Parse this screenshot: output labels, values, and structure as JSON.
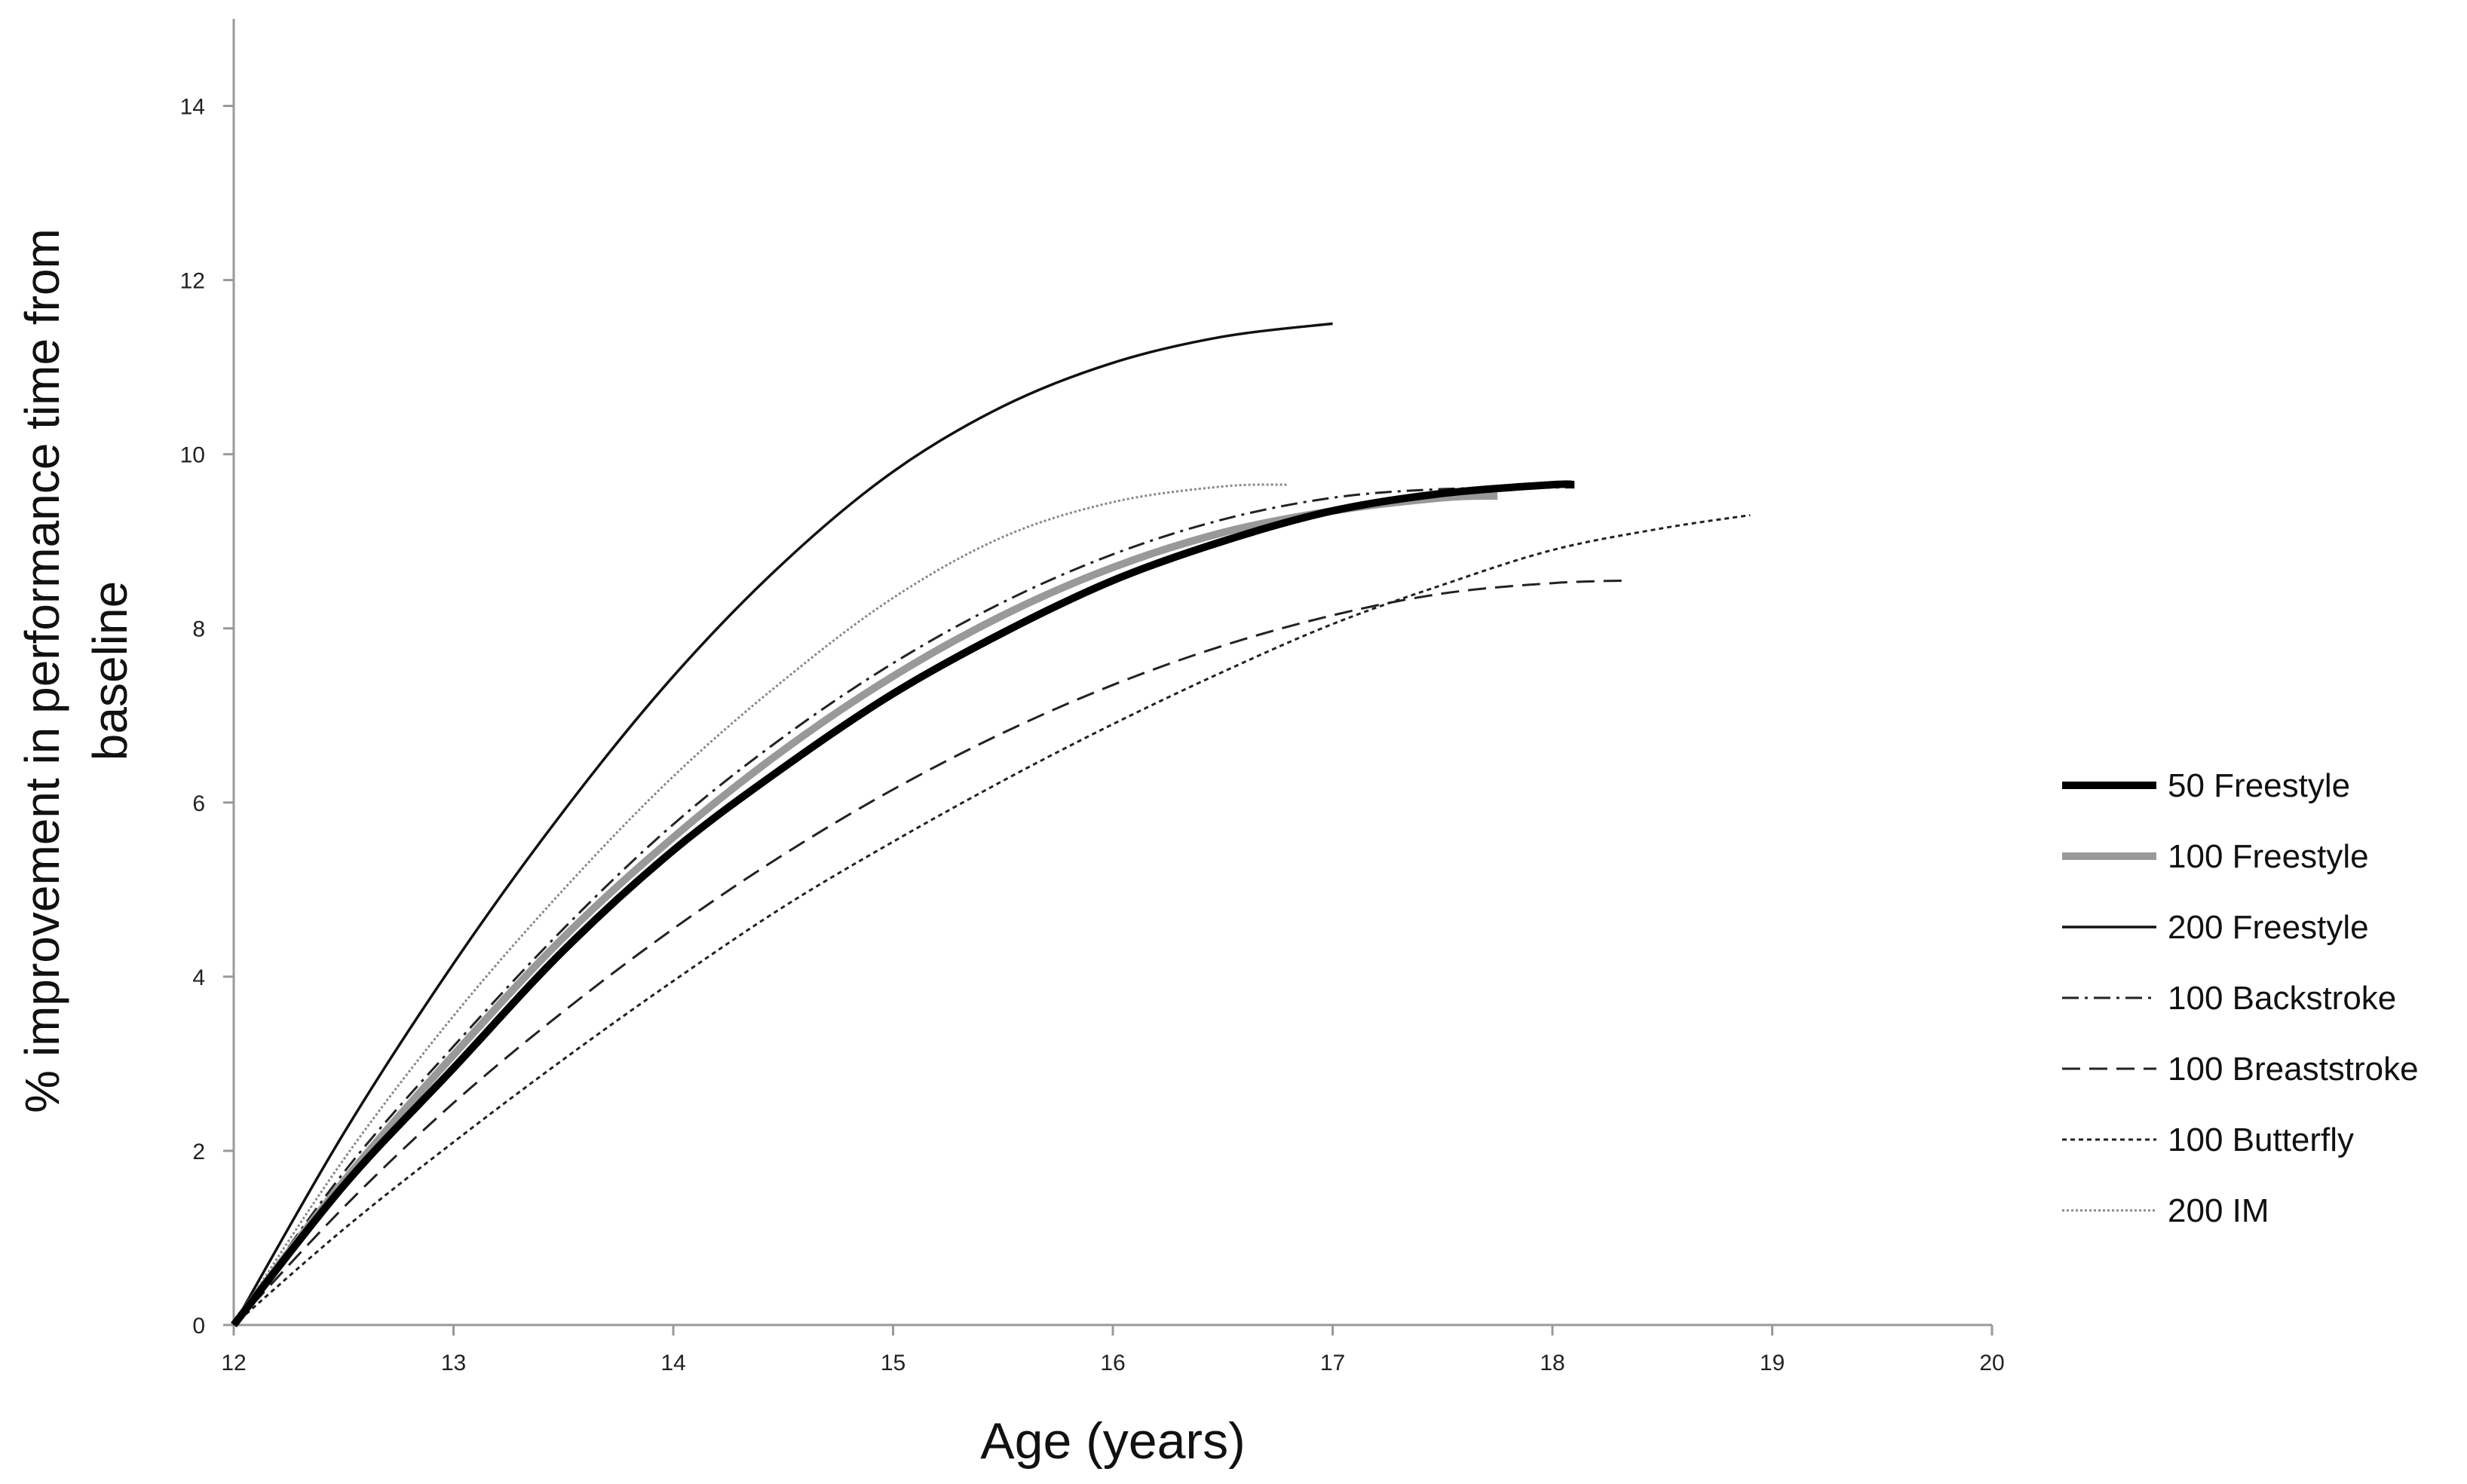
{
  "chart_data": {
    "type": "line",
    "title": "",
    "xlabel": "Age (years)",
    "ylabel_line1": "% improvement in performance time from",
    "ylabel_line2": "baseline",
    "xlim": [
      12,
      20
    ],
    "ylim": [
      0,
      15
    ],
    "x_ticks": [
      "12",
      "13",
      "14",
      "15",
      "16",
      "17",
      "18",
      "19",
      "20"
    ],
    "y_ticks": [
      "0",
      "2",
      "4",
      "6",
      "8",
      "10",
      "12",
      "14"
    ],
    "grid": false,
    "legend_position": "right",
    "series": [
      {
        "name": "50 Freestyle",
        "style": "solid-thick",
        "color": "#000000",
        "x": [
          12,
          12.5,
          13,
          13.5,
          14,
          14.5,
          15,
          15.5,
          16,
          16.5,
          17,
          17.5,
          18,
          18.1
        ],
        "y": [
          0,
          1.6,
          2.95,
          4.3,
          5.45,
          6.4,
          7.25,
          7.95,
          8.55,
          9.0,
          9.35,
          9.55,
          9.65,
          9.65
        ]
      },
      {
        "name": "100 Freestyle",
        "style": "solid-thick",
        "color": "#999999",
        "x": [
          12,
          12.5,
          13,
          13.5,
          14,
          14.5,
          15,
          15.5,
          16,
          16.5,
          17,
          17.5,
          17.75
        ],
        "y": [
          0,
          1.65,
          3.1,
          4.45,
          5.6,
          6.6,
          7.45,
          8.15,
          8.7,
          9.1,
          9.35,
          9.5,
          9.52
        ]
      },
      {
        "name": "200 Freestyle",
        "style": "solid-thin",
        "color": "#111111",
        "x": [
          12,
          12.5,
          13,
          13.5,
          14,
          14.5,
          15,
          15.5,
          16,
          16.5,
          17
        ],
        "y": [
          0,
          2.2,
          4.15,
          5.9,
          7.45,
          8.75,
          9.8,
          10.55,
          11.05,
          11.35,
          11.5
        ]
      },
      {
        "name": "100 Backstroke",
        "style": "dash-dot",
        "color": "#222222",
        "x": [
          12,
          12.5,
          13,
          13.5,
          14,
          14.5,
          15,
          15.5,
          16,
          16.5,
          17,
          17.5,
          18.1
        ],
        "y": [
          0,
          1.75,
          3.2,
          4.55,
          5.75,
          6.75,
          7.6,
          8.3,
          8.85,
          9.25,
          9.5,
          9.6,
          9.62
        ]
      },
      {
        "name": "100 Breaststroke",
        "style": "dashed",
        "color": "#222222",
        "x": [
          12,
          12.5,
          13,
          13.5,
          14,
          14.5,
          15,
          15.5,
          16,
          16.5,
          17,
          17.5,
          18,
          18.35
        ],
        "y": [
          0,
          1.35,
          2.55,
          3.6,
          4.55,
          5.4,
          6.15,
          6.8,
          7.35,
          7.8,
          8.15,
          8.4,
          8.52,
          8.55
        ]
      },
      {
        "name": "100 Butterfly",
        "style": "dotted",
        "color": "#222222",
        "x": [
          12,
          12.5,
          13,
          13.5,
          14,
          14.5,
          15,
          15.5,
          16,
          16.5,
          17,
          17.5,
          18,
          18.5,
          18.9
        ],
        "y": [
          0,
          1.1,
          2.1,
          3.05,
          3.95,
          4.8,
          5.55,
          6.25,
          6.9,
          7.5,
          8.05,
          8.5,
          8.9,
          9.15,
          9.3
        ]
      },
      {
        "name": "200 IM",
        "style": "dotted-fine",
        "color": "#888888",
        "x": [
          12,
          12.5,
          13,
          13.5,
          14,
          14.5,
          15,
          15.5,
          16,
          16.5,
          16.8
        ],
        "y": [
          0,
          1.9,
          3.55,
          5.0,
          6.3,
          7.4,
          8.35,
          9.05,
          9.45,
          9.63,
          9.65
        ]
      }
    ]
  }
}
